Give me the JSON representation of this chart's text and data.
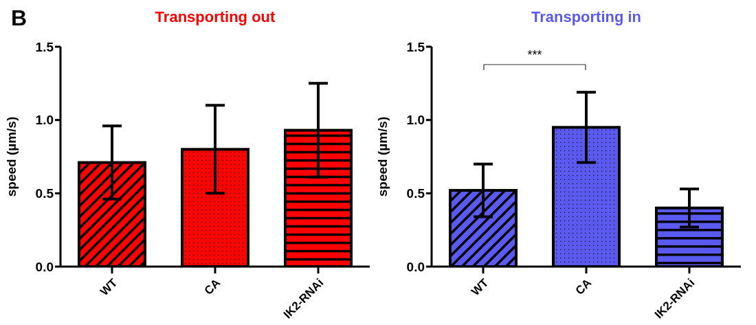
{
  "chart_data": [
    {
      "type": "bar",
      "title": "Transporting out",
      "ylabel": "speed (µm/s)",
      "categories": [
        "WT",
        "CA",
        "IK2-RNAi"
      ],
      "values": [
        0.71,
        0.8,
        0.93
      ],
      "errors": [
        0.25,
        0.3,
        0.32
      ],
      "color": "#ff0000",
      "ylim": [
        0,
        1.5
      ],
      "yticks": [
        {
          "value": 0,
          "label": "0.0"
        },
        {
          "value": 0.5,
          "label": "0.5"
        },
        {
          "value": 1,
          "label": "1.0"
        },
        {
          "value": 1.5,
          "label": "1.5"
        }
      ],
      "annotations": [
        "B"
      ]
    },
    {
      "type": "bar",
      "title": "Transporting in",
      "ylabel": "speed (µm/s)",
      "categories": [
        "WT",
        "CA",
        "IK2-RNAi"
      ],
      "values": [
        0.52,
        0.95,
        0.4
      ],
      "errors": [
        0.18,
        0.24,
        0.13
      ],
      "color": "#5a5af0",
      "ylim": [
        0,
        1.5
      ],
      "yticks": [
        {
          "value": 0,
          "label": "0.0"
        },
        {
          "value": 0.5,
          "label": "0.5"
        },
        {
          "value": 1,
          "label": "1.0"
        },
        {
          "value": 1.5,
          "label": "1.5"
        }
      ],
      "annotations": [
        "***"
      ]
    }
  ]
}
